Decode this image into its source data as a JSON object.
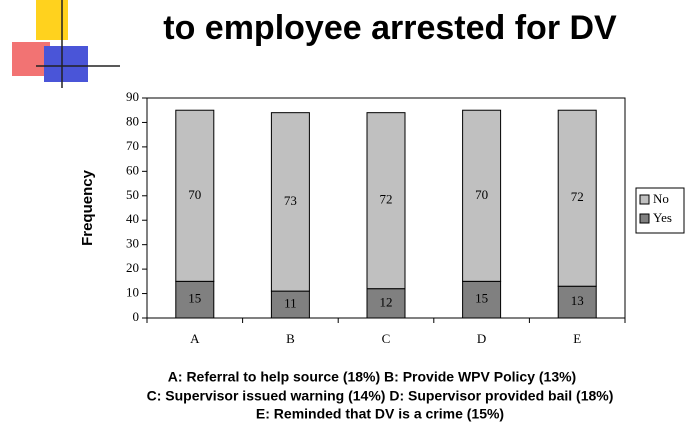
{
  "chart_data": {
    "type": "stacked_bar",
    "title": "to employee arrested for DV",
    "y_label": "Frequency",
    "categories": [
      "A",
      "B",
      "C",
      "D",
      "E"
    ],
    "series": [
      {
        "name": "Yes",
        "color": "#808080",
        "values": [
          15,
          11,
          12,
          15,
          13
        ]
      },
      {
        "name": "No",
        "color": "#c0c0c0",
        "values": [
          70,
          73,
          72,
          70,
          72
        ]
      }
    ],
    "ylim": [
      0,
      90
    ],
    "yticks": [
      0,
      10,
      20,
      30,
      40,
      50,
      60,
      70,
      80,
      90
    ],
    "legend": "right",
    "annotations": [
      "A: Referral to help source (18%) B: Provide WPV Policy (13%)",
      "C: Supervisor issued warning (14%)  D: Supervisor provided bail (18%)",
      "E: Reminded that DV is a crime (15%)"
    ]
  }
}
